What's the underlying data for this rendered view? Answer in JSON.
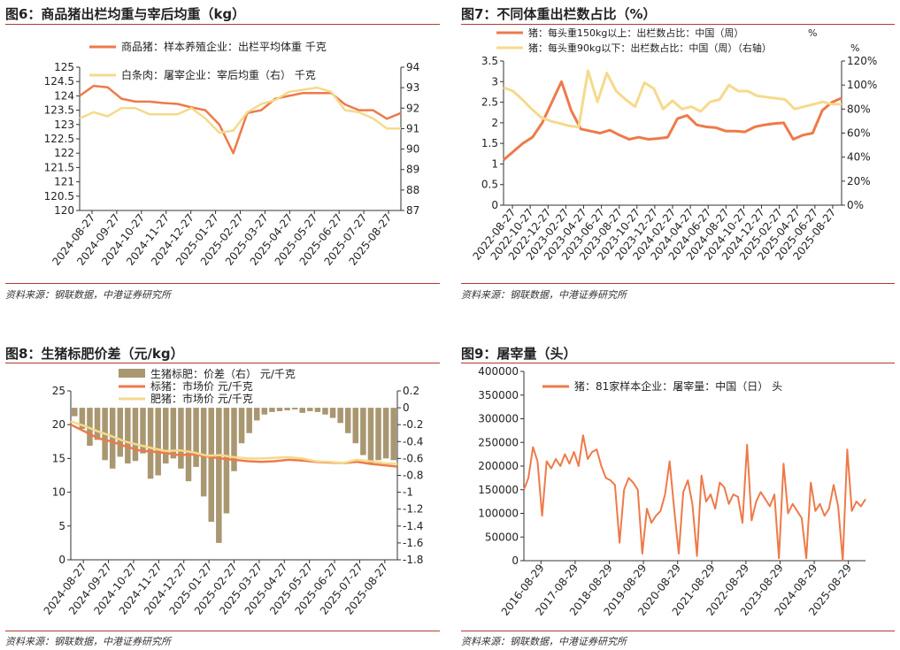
{
  "panels": [
    {
      "title": "图6：商品猪出栏均重与宰后均重（kg）",
      "source": "资料来源：钢联数据，中港证券研究所",
      "chart_data": {
        "type": "line",
        "xticks": [
          "2024-08-27",
          "2024-09-27",
          "2024-10-27",
          "2024-11-27",
          "2024-12-27",
          "2025-01-27",
          "2025-02-27",
          "2025-03-27",
          "2025-04-27",
          "2025-05-27",
          "2025-06-27",
          "2025-07-27",
          "2025-08-27"
        ],
        "y_left": {
          "min": 120,
          "max": 125,
          "ticks": [
            "120",
            "120.5",
            "121",
            "121.5",
            "122",
            "122.5",
            "123",
            "123.5",
            "124",
            "124.5",
            "125"
          ]
        },
        "y_right": {
          "min": 87,
          "max": 94,
          "ticks": [
            "87",
            "88",
            "89",
            "90",
            "91",
            "92",
            "93",
            "94"
          ]
        },
        "series": [
          {
            "name": "商品猪：样本养殖企业：出栏平均体重 千克",
            "axis": "left",
            "color": "#EE7A4A",
            "values": [
              124.0,
              124.35,
              124.3,
              123.9,
              123.8,
              123.8,
              123.75,
              123.72,
              123.6,
              123.5,
              123.0,
              122.0,
              123.4,
              123.5,
              123.9,
              124.0,
              124.1,
              124.1,
              124.1,
              123.7,
              123.5,
              123.5,
              123.2,
              123.4
            ]
          },
          {
            "name": "白条肉：屠宰企业：宰后均重（右） 千克",
            "axis": "right",
            "color": "#F5DA8C",
            "values": [
              91.5,
              91.8,
              91.6,
              92.0,
              92.0,
              91.7,
              91.7,
              91.7,
              92.0,
              91.5,
              90.8,
              90.9,
              91.8,
              92.2,
              92.4,
              92.8,
              92.9,
              93.0,
              92.8,
              91.9,
              91.8,
              91.5,
              91.0,
              91.0
            ]
          }
        ]
      }
    },
    {
      "title": "图7：不同体重出栏数占比（%）",
      "source": "资料来源：钢联数据，中港证券研究所",
      "chart_data": {
        "type": "line",
        "xticks": [
          "2022-08-27",
          "2022-10-27",
          "2022-12-27",
          "2023-02-27",
          "2023-04-27",
          "2023-06-27",
          "2023-08-27",
          "2023-10-27",
          "2023-12-27",
          "2024-02-27",
          "2024-04-27",
          "2024-06-27",
          "2024-08-27",
          "2024-10-27",
          "2024-12-27",
          "2025-02-27",
          "2025-04-27",
          "2025-06-27",
          "2025-08-27"
        ],
        "y_left": {
          "min": 0,
          "max": 3.5,
          "ticks": [
            "0",
            "0.5",
            "1",
            "1.5",
            "2",
            "2.5",
            "3",
            "3.5"
          ]
        },
        "y_right": {
          "min": 0,
          "max": 120,
          "ticks": [
            "0%",
            "20%",
            "40%",
            "60%",
            "80%",
            "100%",
            "120%"
          ]
        },
        "series": [
          {
            "name": "猪：每头重150kg以上：出栏数占比：中国（周）",
            "unit": "%",
            "axis": "left",
            "color": "#EE7A4A",
            "values": [
              1.1,
              1.3,
              1.5,
              1.65,
              2.0,
              2.5,
              3.0,
              2.3,
              1.85,
              1.8,
              1.75,
              1.82,
              1.7,
              1.6,
              1.65,
              1.6,
              1.62,
              1.65,
              2.1,
              2.18,
              1.95,
              1.9,
              1.88,
              1.8,
              1.8,
              1.78,
              1.9,
              1.95,
              1.98,
              2.0,
              1.6,
              1.7,
              1.75,
              2.3,
              2.5,
              2.6
            ]
          },
          {
            "name": "猪：每头重90kg以下：出栏数占比：中国（周）（右轴）",
            "unit": "%",
            "axis": "right",
            "color": "#F5DA8C",
            "values": [
              98,
              95,
              88,
              80,
              73,
              70,
              68,
              66,
              65,
              112,
              86,
              110,
              95,
              88,
              82,
              102,
              97,
              80,
              87,
              80,
              82,
              78,
              86,
              88,
              100,
              95,
              95,
              91,
              90,
              89,
              88,
              80,
              82,
              84,
              86,
              84,
              84
            ]
          }
        ]
      }
    },
    {
      "title": "图8：生猪标肥价差（元/kg）",
      "source": "资料来源：钢联数据，中港证券研究所",
      "chart_data": {
        "type": "bar",
        "xticks": [
          "2024-08-27",
          "2024-09-27",
          "2024-10-27",
          "2024-11-27",
          "2024-12-27",
          "2025-01-27",
          "2025-02-27",
          "2025-03-27",
          "2025-04-27",
          "2025-05-27",
          "2025-06-27",
          "2025-07-27",
          "2025-08-27"
        ],
        "y_left": {
          "min": 0,
          "max": 25,
          "ticks": [
            "0",
            "5",
            "10",
            "15",
            "20",
            "25"
          ]
        },
        "y_right": {
          "min": -1.8,
          "max": 0.2,
          "ticks": [
            "0.2",
            "0",
            "-0.2",
            "-0.4",
            "-0.6",
            "-0.8",
            "-1",
            "-1.2",
            "-1.4",
            "-1.6",
            "-1.8"
          ]
        },
        "series": [
          {
            "name": "生猪标肥：价差（右） 元/千克",
            "axis": "right",
            "type": "bar",
            "color": "#A99772",
            "values": [
              -0.1,
              -0.25,
              -0.45,
              -0.38,
              -0.62,
              -0.72,
              -0.58,
              -0.66,
              -0.63,
              -0.54,
              -0.84,
              -0.8,
              -0.66,
              -0.6,
              -0.72,
              -0.87,
              -0.7,
              -1.05,
              -1.35,
              -1.6,
              -1.25,
              -0.75,
              -0.42,
              -0.3,
              -0.15,
              -0.08,
              -0.05,
              -0.04,
              -0.03,
              -0.02,
              -0.06,
              -0.04,
              -0.05,
              -0.08,
              -0.12,
              -0.18,
              -0.3,
              -0.42,
              -0.56,
              -0.66,
              -0.62,
              -0.6,
              -0.62
            ]
          },
          {
            "name": "标猪：市场价 元/千克",
            "axis": "left",
            "type": "line",
            "color": "#EE7A4A",
            "values": [
              20.0,
              19.0,
              18.0,
              17.5,
              16.8,
              16.2,
              16.0,
              15.8,
              15.5,
              15.6,
              15.3,
              15.0,
              14.8,
              14.6,
              14.5,
              14.6,
              14.8,
              14.7,
              14.5,
              14.4,
              14.3,
              14.5,
              14.2,
              14.0,
              13.8
            ]
          },
          {
            "name": "肥猪：市场价 元/千克",
            "axis": "left",
            "type": "line",
            "color": "#F5DA8C",
            "values": [
              20.5,
              19.8,
              19.0,
              18.3,
              17.5,
              17.0,
              16.5,
              16.1,
              16.2,
              15.9,
              15.4,
              15.5,
              15.2,
              15.0,
              15.0,
              15.1,
              15.2,
              15.0,
              14.6,
              14.5,
              14.3,
              14.8,
              14.6,
              14.3,
              14.2
            ]
          }
        ]
      }
    },
    {
      "title": "图9：屠宰量（头）",
      "source": "资料来源：钢联数据，中港证券研究所",
      "chart_data": {
        "type": "line",
        "xticks": [
          "2016-08-29",
          "2017-08-29",
          "2018-08-29",
          "2019-08-29",
          "2020-08-29",
          "2021-08-29",
          "2022-08-29",
          "2023-08-29",
          "2024-08-29",
          "2025-08-29"
        ],
        "y_left": {
          "min": 0,
          "max": 400000,
          "ticks": [
            "0",
            "50000",
            "100000",
            "150000",
            "200000",
            "250000",
            "300000",
            "350000",
            "400000"
          ]
        },
        "series": [
          {
            "name": "猪：81家样本企业：屠宰量：中国（日） 头",
            "axis": "left",
            "color": "#EE7A4A",
            "values": [
              150000,
              175000,
              240000,
              210000,
              95000,
              210000,
              195000,
              215000,
              200000,
              225000,
              205000,
              230000,
              200000,
              265000,
              215000,
              230000,
              235000,
              200000,
              175000,
              170000,
              160000,
              38000,
              150000,
              175000,
              165000,
              150000,
              15000,
              110000,
              80000,
              95000,
              105000,
              140000,
              210000,
              110000,
              15000,
              145000,
              170000,
              120000,
              10000,
              180000,
              125000,
              140000,
              110000,
              165000,
              155000,
              120000,
              140000,
              135000,
              80000,
              245000,
              85000,
              125000,
              145000,
              130000,
              115000,
              140000,
              5000,
              205000,
              100000,
              120000,
              105000,
              90000,
              5000,
              165000,
              105000,
              120000,
              95000,
              110000,
              160000,
              115000,
              0,
              235000,
              105000,
              125000,
              115000,
              130000
            ]
          }
        ]
      }
    }
  ]
}
